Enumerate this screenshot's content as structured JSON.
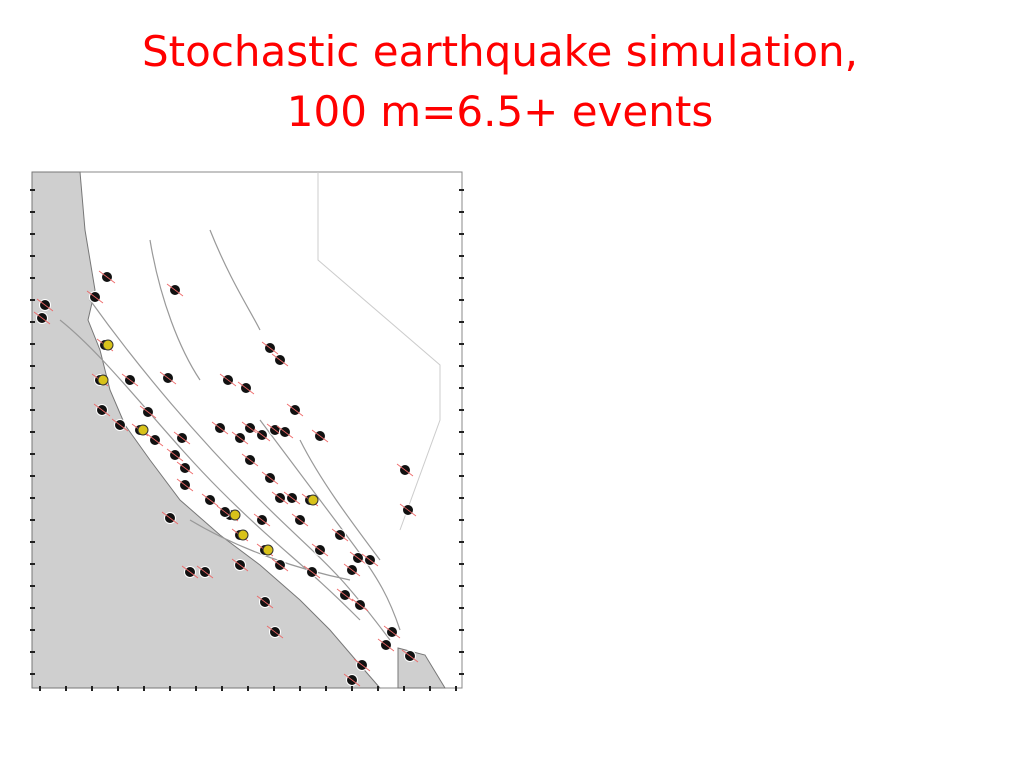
{
  "slide": {
    "title_lines": [
      "Stochastic earthquake simulation,",
      "100 m=6.5+ events"
    ]
  }
}
